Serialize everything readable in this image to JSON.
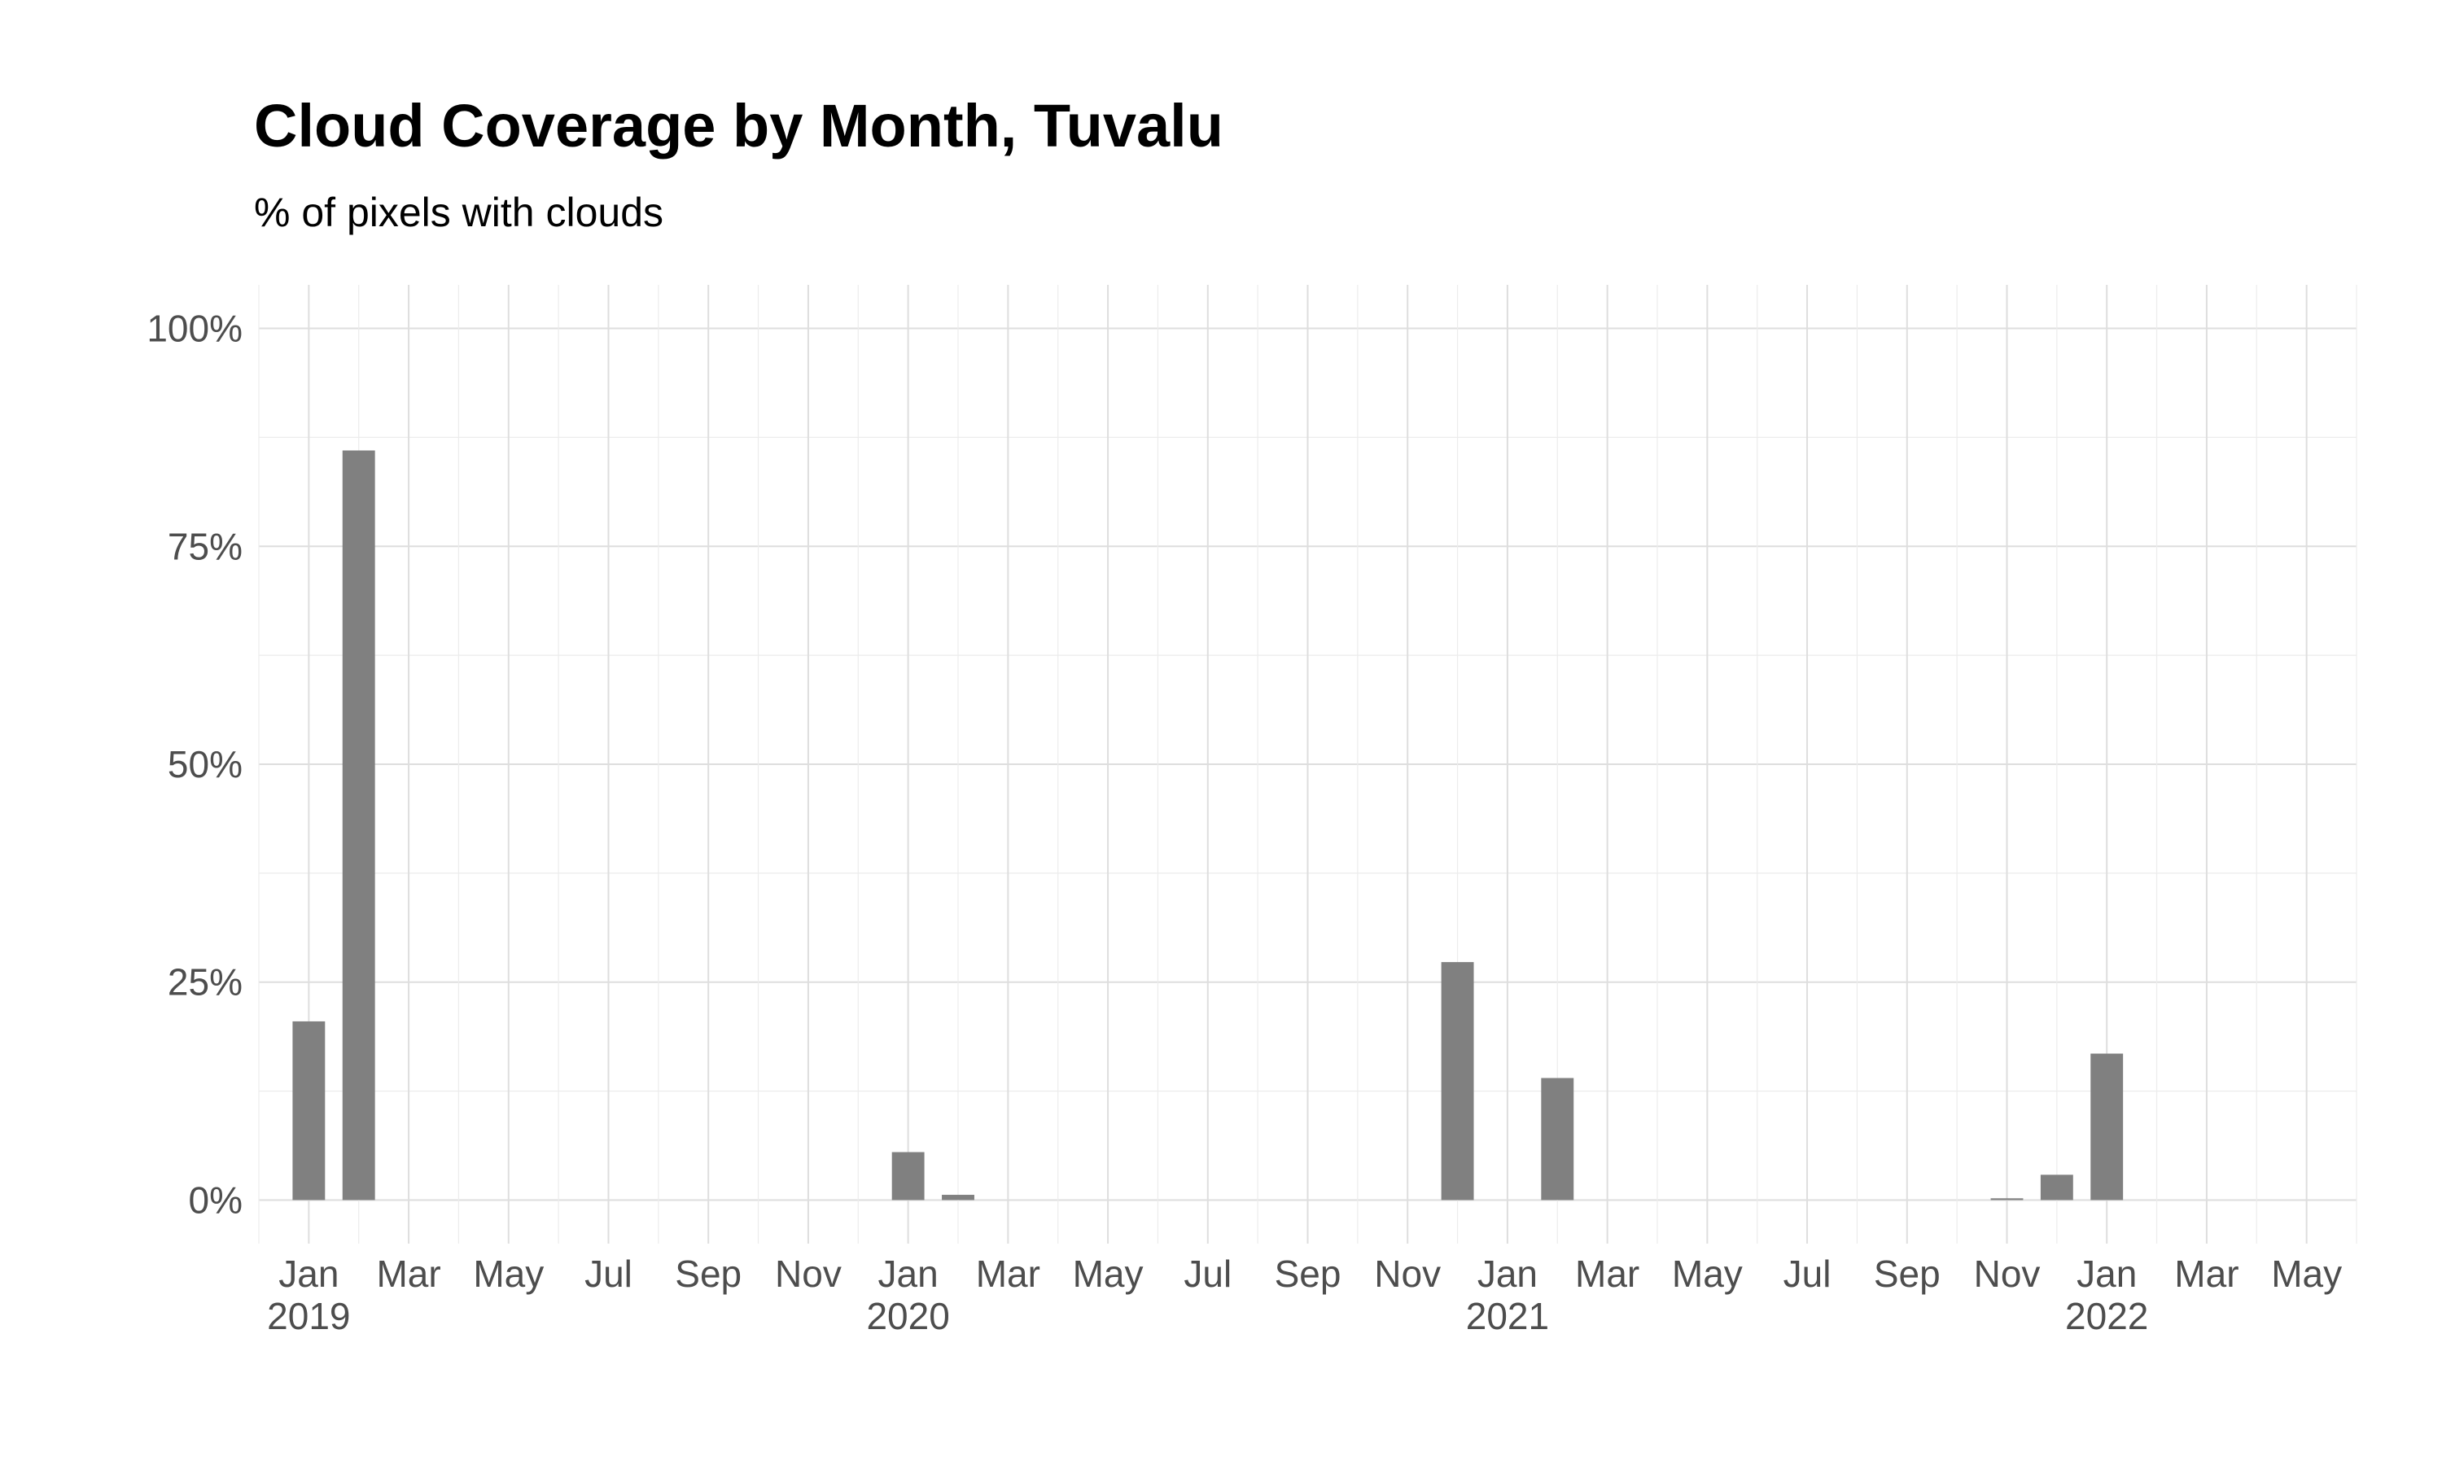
{
  "chart_data": {
    "type": "bar",
    "title": "Cloud Coverage by Month, Tuvalu",
    "subtitle": "% of pixels with clouds",
    "xlabel": "",
    "ylabel": "",
    "x_range": [
      "2018-12",
      "2022-06"
    ],
    "ylim": [
      -5,
      105
    ],
    "y_ticks": [
      0,
      25,
      50,
      75,
      100
    ],
    "y_tick_labels": [
      "0%",
      "25%",
      "50%",
      "75%",
      "100%"
    ],
    "x_ticks": [
      {
        "date": "2019-01",
        "label": "Jan",
        "year": "2019"
      },
      {
        "date": "2019-03",
        "label": "Mar",
        "year": ""
      },
      {
        "date": "2019-05",
        "label": "May",
        "year": ""
      },
      {
        "date": "2019-07",
        "label": "Jul",
        "year": ""
      },
      {
        "date": "2019-09",
        "label": "Sep",
        "year": ""
      },
      {
        "date": "2019-11",
        "label": "Nov",
        "year": ""
      },
      {
        "date": "2020-01",
        "label": "Jan",
        "year": "2020"
      },
      {
        "date": "2020-03",
        "label": "Mar",
        "year": ""
      },
      {
        "date": "2020-05",
        "label": "May",
        "year": ""
      },
      {
        "date": "2020-07",
        "label": "Jul",
        "year": ""
      },
      {
        "date": "2020-09",
        "label": "Sep",
        "year": ""
      },
      {
        "date": "2020-11",
        "label": "Nov",
        "year": ""
      },
      {
        "date": "2021-01",
        "label": "Jan",
        "year": "2021"
      },
      {
        "date": "2021-03",
        "label": "Mar",
        "year": ""
      },
      {
        "date": "2021-05",
        "label": "May",
        "year": ""
      },
      {
        "date": "2021-07",
        "label": "Jul",
        "year": ""
      },
      {
        "date": "2021-09",
        "label": "Sep",
        "year": ""
      },
      {
        "date": "2021-11",
        "label": "Nov",
        "year": ""
      },
      {
        "date": "2022-01",
        "label": "Jan",
        "year": "2022"
      },
      {
        "date": "2022-03",
        "label": "Mar",
        "year": ""
      },
      {
        "date": "2022-05",
        "label": "May",
        "year": ""
      }
    ],
    "x": [
      "2019-01",
      "2019-02",
      "2020-01",
      "2020-02",
      "2020-12",
      "2021-02",
      "2021-11",
      "2021-12",
      "2022-01"
    ],
    "values": [
      20.5,
      86,
      5.5,
      0.6,
      27.3,
      14,
      0.2,
      2.9,
      16.8
    ],
    "bar_color": "#808080",
    "grid": true,
    "legend": "none"
  }
}
